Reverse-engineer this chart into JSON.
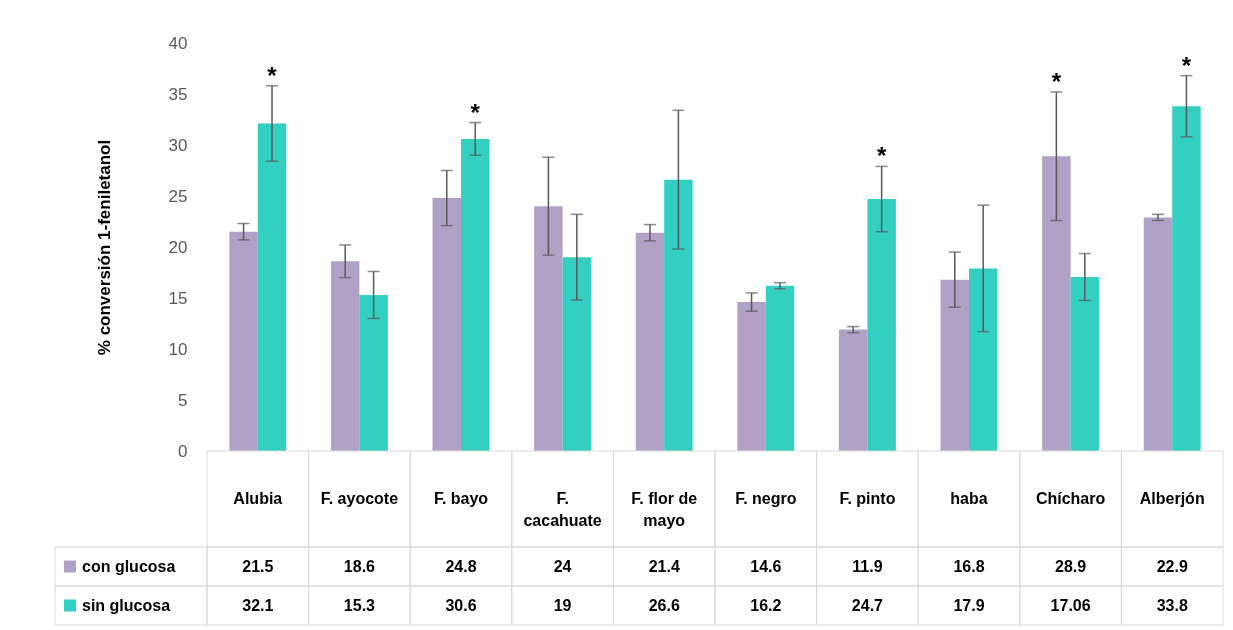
{
  "chart_data": {
    "type": "bar",
    "ylabel": "% conversión 1-feniletanol",
    "categories": [
      "Alubia",
      "F. ayocote",
      "F. bayo",
      "F. cacahuate",
      "F. flor de mayo",
      "F. negro",
      "F. pinto",
      "haba",
      "Chícharo",
      "Alberjón"
    ],
    "series": [
      {
        "name": "con glucosa",
        "color": "#b2a1c7",
        "values": [
          21.5,
          18.6,
          24.8,
          24,
          21.4,
          14.6,
          11.9,
          16.8,
          28.9,
          22.9
        ],
        "errors": [
          0.8,
          1.6,
          2.7,
          4.8,
          0.8,
          0.9,
          0.3,
          2.7,
          6.3,
          0.3
        ]
      },
      {
        "name": "sin glucosa",
        "color": "#33cfc0",
        "values": [
          32.1,
          15.3,
          30.6,
          19,
          26.6,
          16.2,
          24.7,
          17.9,
          17.06,
          33.8
        ],
        "errors": [
          3.7,
          2.3,
          1.6,
          4.2,
          6.8,
          0.3,
          3.2,
          6.2,
          2.3,
          3.0
        ]
      }
    ],
    "ylim": [
      0,
      40
    ],
    "yticks": [
      0,
      5,
      10,
      15,
      20,
      25,
      30,
      35,
      40
    ],
    "legend": "bottom",
    "data_labels": true,
    "annotations": [
      {
        "text": "*",
        "x": "Alubia",
        "y": 32.1
      },
      {
        "text": "*",
        "x": "F. bayo",
        "y": 30.6
      },
      {
        "text": "*",
        "x": "F. pinto",
        "y": 24.7
      },
      {
        "text": "*",
        "x": "Chícharo",
        "y": 28.9
      },
      {
        "text": "*",
        "x": "Alberjón",
        "y": 33.8
      }
    ]
  }
}
